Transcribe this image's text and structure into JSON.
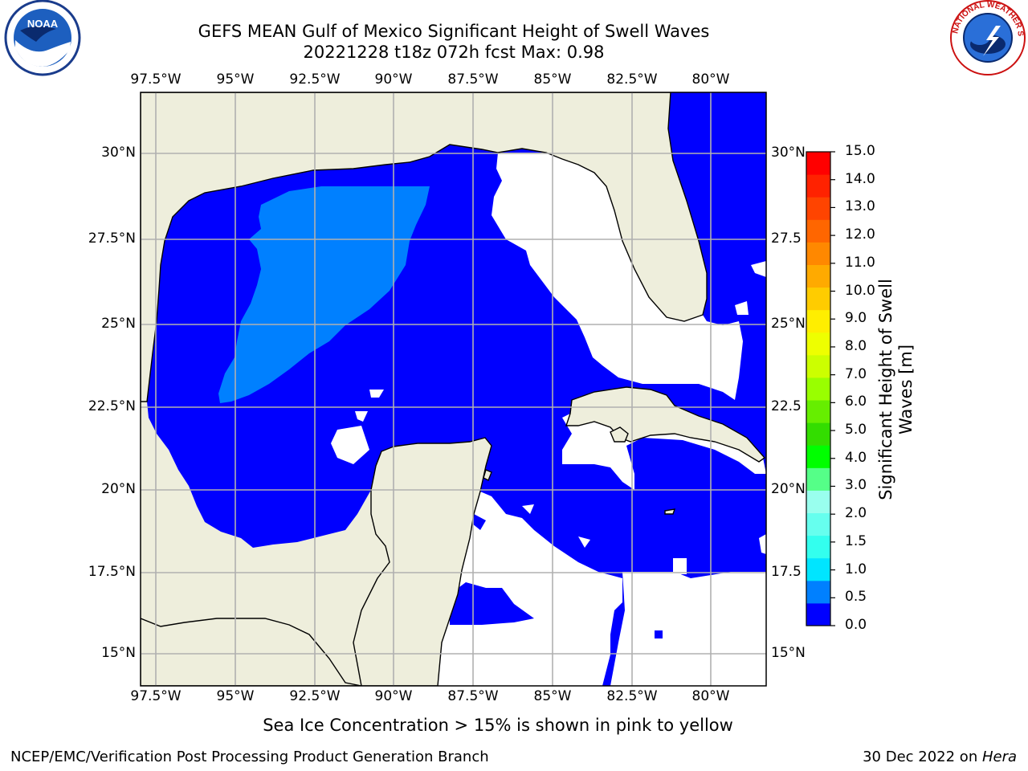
{
  "title": {
    "line1": "GEFS MEAN Gulf of Mexico Significant Height of Swell Waves",
    "line2": "20221228 t18z 072h fcst   Max: 0.98"
  },
  "logos": {
    "left": "noaa-logo",
    "right": "national-weather-service-logo",
    "right_text": "NATIONAL WEATHER SERVICE"
  },
  "map": {
    "lon_labels": [
      "97.5°W",
      "95°W",
      "92.5°W",
      "90°W",
      "87.5°W",
      "85°W",
      "82.5°W",
      "80°W"
    ],
    "lat_labels_left": [
      "30°N",
      "27.5°N",
      "25°N",
      "22.5°N",
      "20°N",
      "17.5°N",
      "15°N"
    ],
    "lat_labels_right": [
      "30°N",
      "27.5",
      "25°N",
      "22.5",
      "20°N",
      "17.5",
      "15°N"
    ],
    "colors": {
      "land": "#eeeedc",
      "no_data": "#ffffff",
      "swell_0_0.5": "#0000ff",
      "swell_0.5_1.0": "#0080ff",
      "grid": "#b0b0b0"
    }
  },
  "colorbar": {
    "ticks": [
      "15.0",
      "14.0",
      "13.0",
      "12.0",
      "11.0",
      "10.0",
      "9.0",
      "8.0",
      "7.0",
      "6.0",
      "5.0",
      "4.0",
      "3.0",
      "2.0",
      "1.5",
      "1.0",
      "0.5",
      "0.0"
    ],
    "label_line1": "Significant Height of Swell",
    "label_line2": "Waves [m]",
    "colors": [
      "#0000ff",
      "#0080ff",
      "#00e5ff",
      "#33ffee",
      "#66ffee",
      "#99ffee",
      "#55ff88",
      "#00ff00",
      "#33dd00",
      "#66ee00",
      "#99ff00",
      "#ccff00",
      "#eeff00",
      "#ffee00",
      "#ffcc00",
      "#ffaa00",
      "#ff8800",
      "#ff6600",
      "#ff4400",
      "#ff2200",
      "#ff0000"
    ]
  },
  "note": "Sea Ice Concentration > 15% is shown in pink to yellow",
  "footer": {
    "left": "NCEP/EMC/Verification Post Processing Product Generation Branch",
    "right_date": "30 Dec 2022 on ",
    "right_host": "Hera"
  }
}
